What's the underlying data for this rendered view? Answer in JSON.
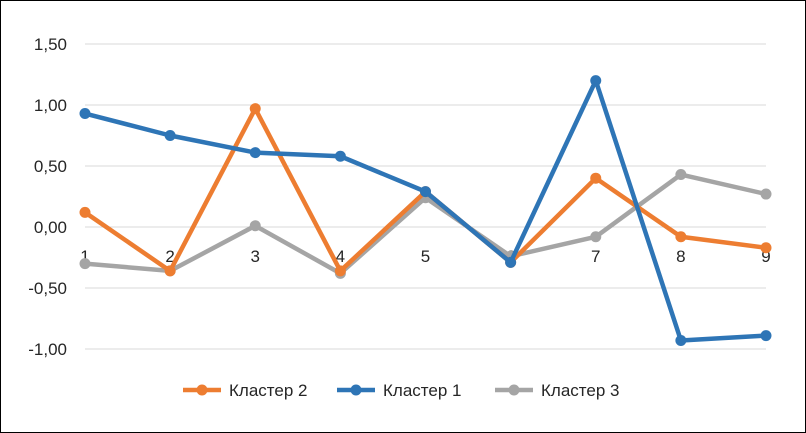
{
  "chart_data": {
    "type": "line",
    "title": "",
    "xlabel": "",
    "ylabel": "",
    "categories": [
      "1",
      "2",
      "3",
      "4",
      "5",
      "6",
      "7",
      "8",
      "9"
    ],
    "ylim": [
      -1.0,
      1.5
    ],
    "y_ticks": [
      "1,50",
      "1,00",
      "0,50",
      "0,00",
      "-0,50",
      "-1,00"
    ],
    "y_tick_values": [
      1.5,
      1.0,
      0.5,
      0.0,
      -0.5,
      -1.0
    ],
    "grid": true,
    "legend_position": "bottom",
    "series": [
      {
        "name": "Кластер 2",
        "color": "#ED7D31",
        "values": [
          0.12,
          -0.36,
          0.97,
          -0.36,
          0.29,
          -0.29,
          0.4,
          -0.08,
          -0.17
        ]
      },
      {
        "name": "Кластер 1",
        "color": "#2E75B6",
        "values": [
          0.93,
          0.75,
          0.61,
          0.58,
          0.29,
          -0.29,
          1.2,
          -0.93,
          -0.89
        ]
      },
      {
        "name": "Кластер 3",
        "color": "#A5A5A5",
        "values": [
          -0.3,
          -0.36,
          0.01,
          -0.38,
          0.24,
          -0.24,
          -0.08,
          0.43,
          0.27
        ]
      }
    ]
  }
}
